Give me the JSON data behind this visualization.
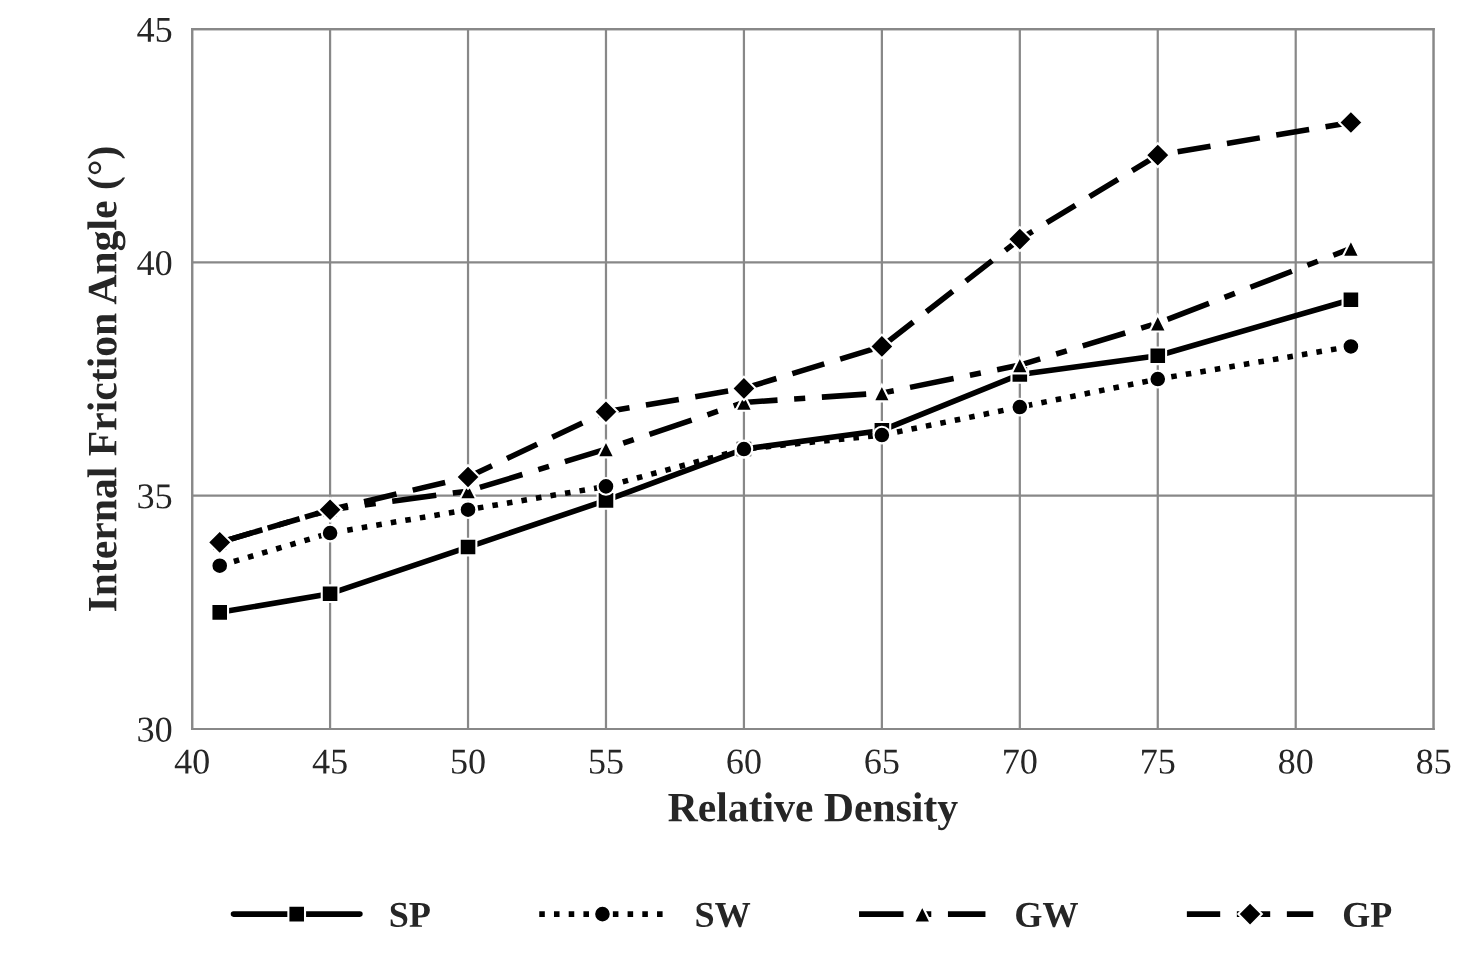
{
  "chart_data": {
    "type": "line",
    "xlabel": "Relative Density",
    "ylabel": "Internal Friction Angle (°)",
    "x": [
      41,
      45,
      50,
      55,
      60,
      65,
      70,
      75,
      82
    ],
    "series": [
      {
        "name": "SP",
        "color": "#000000",
        "marker": "square",
        "line_style": "solid",
        "values": [
          32.5,
          32.9,
          33.9,
          34.9,
          36.0,
          36.4,
          37.6,
          38.0,
          39.2
        ]
      },
      {
        "name": "SW",
        "color": "#000000",
        "marker": "circle",
        "line_style": "dotted",
        "values": [
          33.5,
          34.2,
          34.7,
          35.2,
          36.0,
          36.3,
          36.9,
          37.5,
          38.2
        ]
      },
      {
        "name": "GW",
        "color": "#000000",
        "marker": "triangle",
        "line_style": "dashdot",
        "values": [
          34.0,
          34.7,
          35.1,
          36.0,
          37.0,
          37.2,
          37.8,
          38.7,
          40.3
        ]
      },
      {
        "name": "GP",
        "color": "#000000",
        "marker": "diamond",
        "line_style": "dashed",
        "values": [
          34.0,
          34.7,
          35.4,
          36.8,
          37.3,
          38.2,
          40.5,
          42.3,
          43.0
        ]
      }
    ],
    "xlim": [
      40,
      85
    ],
    "xticks": [
      40,
      45,
      50,
      55,
      60,
      65,
      70,
      75,
      80,
      85
    ],
    "ylim": [
      30,
      45
    ],
    "yticks": [
      30,
      35,
      40,
      45
    ],
    "grid": true,
    "legend": "bottom"
  }
}
